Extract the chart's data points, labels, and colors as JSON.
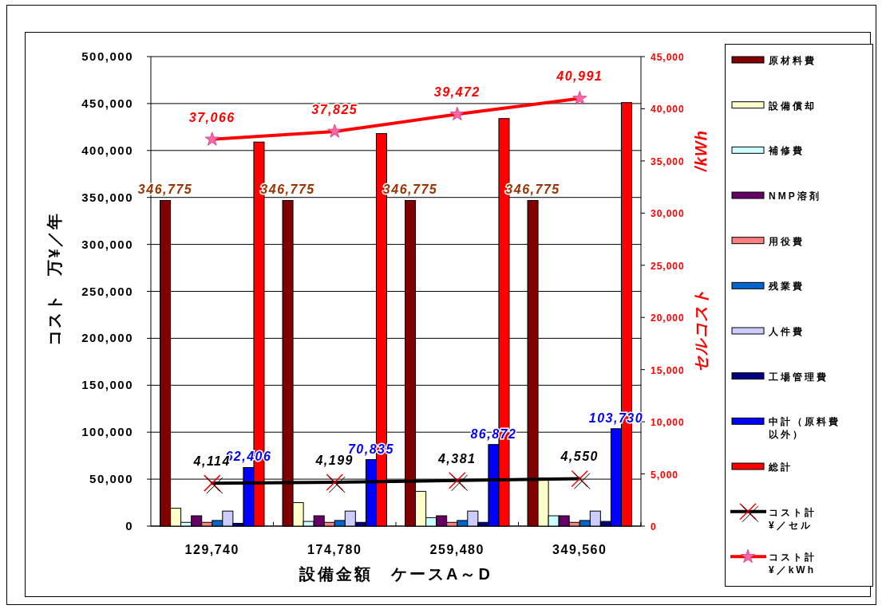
{
  "chart_data": {
    "type": "bar",
    "xlabel": "設備金額　ケースA～D",
    "ylabel": "コスト　万¥／年",
    "y2label": "セルコスト　　　　　　　/kWh",
    "categories": [
      "129,740",
      "174,780",
      "259,480",
      "349,560"
    ],
    "ylim": [
      0,
      500000
    ],
    "yticks": [
      0,
      {
        "value": 50000,
        "label": "50,000"
      },
      {
        "value": 100000,
        "label": "100,000"
      },
      {
        "value": 150000,
        "label": "150,000"
      },
      {
        "value": 200000,
        "label": "200,000"
      },
      {
        "value": 250000,
        "label": "250,000"
      },
      {
        "value": 300000,
        "label": "300,000"
      },
      {
        "value": 350000,
        "label": "350,000"
      },
      {
        "value": 400000,
        "label": "400,000"
      },
      {
        "value": 450000,
        "label": "450,000"
      },
      {
        "value": 500000,
        "label": "500,000"
      }
    ],
    "y2lim": [
      0,
      45000
    ],
    "y2ticks": [
      0,
      {
        "value": 5000,
        "label": "5,000"
      },
      {
        "value": 10000,
        "label": "10,000"
      },
      {
        "value": 15000,
        "label": "15,000"
      },
      {
        "value": 20000,
        "label": "20,000"
      },
      {
        "value": 25000,
        "label": "25,000"
      },
      {
        "value": 30000,
        "label": "30,000"
      },
      {
        "value": 35000,
        "label": "35,000"
      },
      {
        "value": 40000,
        "label": "40,000"
      },
      {
        "value": 45000,
        "label": "45,000"
      }
    ],
    "grid": "y",
    "legend": "right",
    "series": [
      {
        "name": "原材料費",
        "color": "#800000",
        "values": [
          346775,
          346775,
          346775,
          346775
        ],
        "value_labels": [
          "346,775",
          "346,775",
          "346,775",
          "346,775"
        ]
      },
      {
        "name": "設備償却",
        "color": "#ffffcc",
        "values": [
          19000,
          25000,
          37000,
          51000
        ]
      },
      {
        "name": "補修費",
        "color": "#ccffff",
        "values": [
          4000,
          5000,
          9000,
          11000
        ]
      },
      {
        "name": "NMP溶剤",
        "color": "#660066",
        "values": [
          11000,
          11000,
          11000,
          11000
        ]
      },
      {
        "name": "用役費",
        "color": "#ff8080",
        "values": [
          4000,
          4000,
          4000,
          4000
        ]
      },
      {
        "name": "残業費",
        "color": "#0066cc",
        "values": [
          6000,
          6000,
          6000,
          6000
        ]
      },
      {
        "name": "人件費",
        "color": "#ccccff",
        "values": [
          16000,
          16000,
          16000,
          16000
        ]
      },
      {
        "name": "工場管理費",
        "color": "#000080",
        "values": [
          3000,
          4000,
          4000,
          5000
        ]
      },
      {
        "name": "中計（原料費以外）",
        "color": "#0000ff",
        "values": [
          62406,
          70835,
          86872,
          103730
        ],
        "value_labels": [
          "62,406",
          "70,835",
          "86,872",
          "103,730"
        ]
      },
      {
        "name": "総計",
        "color": "#ff0000",
        "values": [
          409000,
          418000,
          434000,
          451000
        ]
      },
      {
        "name": "コスト計\n¥／セル",
        "type": "line",
        "axis": "y2",
        "marker": "cross",
        "color": "#000000",
        "values": [
          4114,
          4199,
          4381,
          4550
        ],
        "value_labels": [
          "4,114",
          "4,199",
          "4,381",
          "4,550"
        ]
      },
      {
        "name": "コスト計\n¥／kWh",
        "type": "line",
        "axis": "y2",
        "marker": "star",
        "color": "#ff0000",
        "values": [
          37066,
          37825,
          39472,
          40991
        ],
        "value_labels": [
          "37,066",
          "37,825",
          "39,472",
          "40,991"
        ]
      }
    ]
  }
}
